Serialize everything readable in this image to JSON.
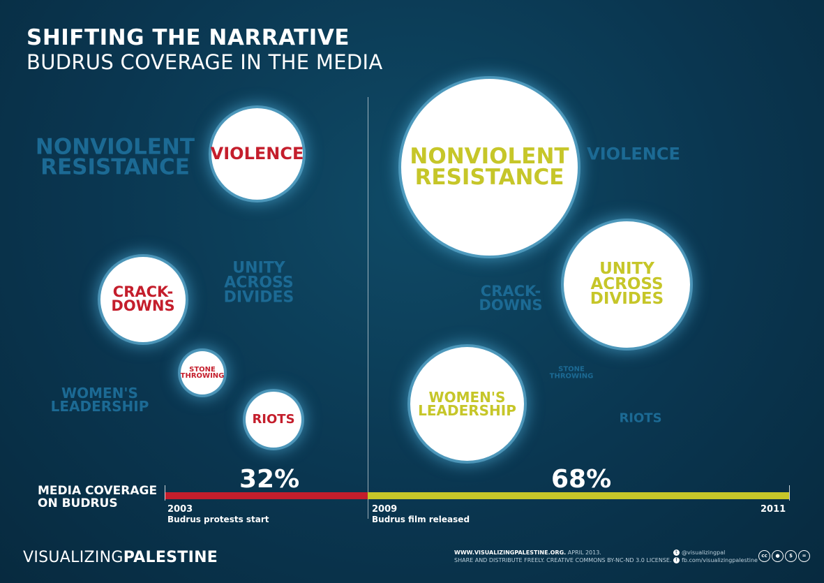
{
  "header": {
    "title": "SHIFTING THE NARRATIVE",
    "subtitle": "BUDRUS COVERAGE IN THE MEDIA"
  },
  "left_panel": {
    "nonviolent_line1": "NONVIOLENT",
    "nonviolent_line2": "RESISTANCE",
    "violence": "VIOLENCE",
    "crackdowns_line1": "CRACK-",
    "crackdowns_line2": "DOWNS",
    "unity_line1": "UNITY",
    "unity_line2": "ACROSS",
    "unity_line3": "DIVIDES",
    "stone_line1": "STONE",
    "stone_line2": "THROWING",
    "womens_line1": "WOMEN'S",
    "womens_line2": "LEADERSHIP",
    "riots": "RIOTS"
  },
  "right_panel": {
    "nonviolent_line1": "NONVIOLENT",
    "nonviolent_line2": "RESISTANCE",
    "violence": "VIOLENCE",
    "crackdowns_line1": "CRACK-",
    "crackdowns_line2": "DOWNS",
    "unity_line1": "UNITY",
    "unity_line2": "ACROSS",
    "unity_line3": "DIVIDES",
    "stone_line1": "STONE",
    "stone_line2": "THROWING",
    "womens_line1": "WOMEN'S",
    "womens_line2": "LEADERSHIP",
    "riots": "RIOTS"
  },
  "timeline": {
    "label_line1": "MEDIA COVERAGE",
    "label_line2": "ON BUDRUS",
    "left_percent": "32%",
    "right_percent": "68%",
    "left_share": 0.32,
    "right_share": 0.68,
    "start_year": "2003",
    "start_caption": "Budrus protests start",
    "mid_year": "2009",
    "mid_caption": "Budrus film released",
    "end_year": "2011"
  },
  "footer": {
    "brand_light": "VISUALIZING",
    "brand_bold": "PALESTINE",
    "site": "WWW.VISUALIZINGPALESTINE.ORG.",
    "date": " APRIL 2013.",
    "license": "SHARE AND DISTRIBUTE FREELY. CREATIVE COMMONS BY-NC-ND 3.0 LICENSE.",
    "twitter": "@visualizingpal",
    "facebook": "fb.com/visualizingpalestine"
  },
  "colors": {
    "background": "#0a3650",
    "violence_red": "#c41e2c",
    "nonviolence_olive": "#c6c629",
    "faded_blue": "#1c6a94"
  }
}
